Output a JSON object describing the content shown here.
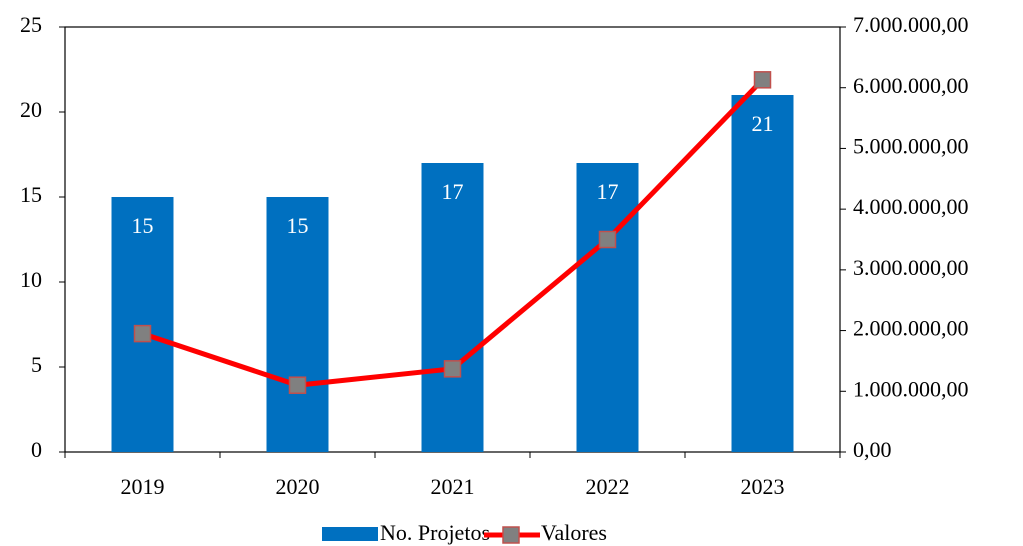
{
  "chart_data": {
    "type": "bar_line",
    "categories": [
      "2019",
      "2020",
      "2021",
      "2022",
      "2023"
    ],
    "series": [
      {
        "name": "No. Projetos",
        "color": "#0070c0",
        "values": [
          15,
          15,
          17,
          17,
          21
        ]
      },
      {
        "name": "Valores",
        "color": "#ff0000",
        "marker_color": "#808080",
        "axis": "y2",
        "values": [
          1950000,
          1100000,
          1370000,
          3500000,
          6130000
        ]
      }
    ],
    "ylim": [
      0,
      25
    ],
    "yticks": [
      0,
      5,
      10,
      15,
      20,
      25
    ],
    "y2lim": [
      0,
      7000000
    ],
    "y2ticks": [
      {
        "value": 0,
        "label": "0,00"
      },
      {
        "value": 1000000,
        "label": "1.000.000,00"
      },
      {
        "value": 2000000,
        "label": "2.000.000,00"
      },
      {
        "value": 3000000,
        "label": "3.000.000,00"
      },
      {
        "value": 4000000,
        "label": "4.000.000,00"
      },
      {
        "value": 5000000,
        "label": "5.000.000,00"
      },
      {
        "value": 6000000,
        "label": "6.000.000,00"
      },
      {
        "value": 7000000,
        "label": "7.000.000,00"
      }
    ],
    "legend": "bottom"
  }
}
